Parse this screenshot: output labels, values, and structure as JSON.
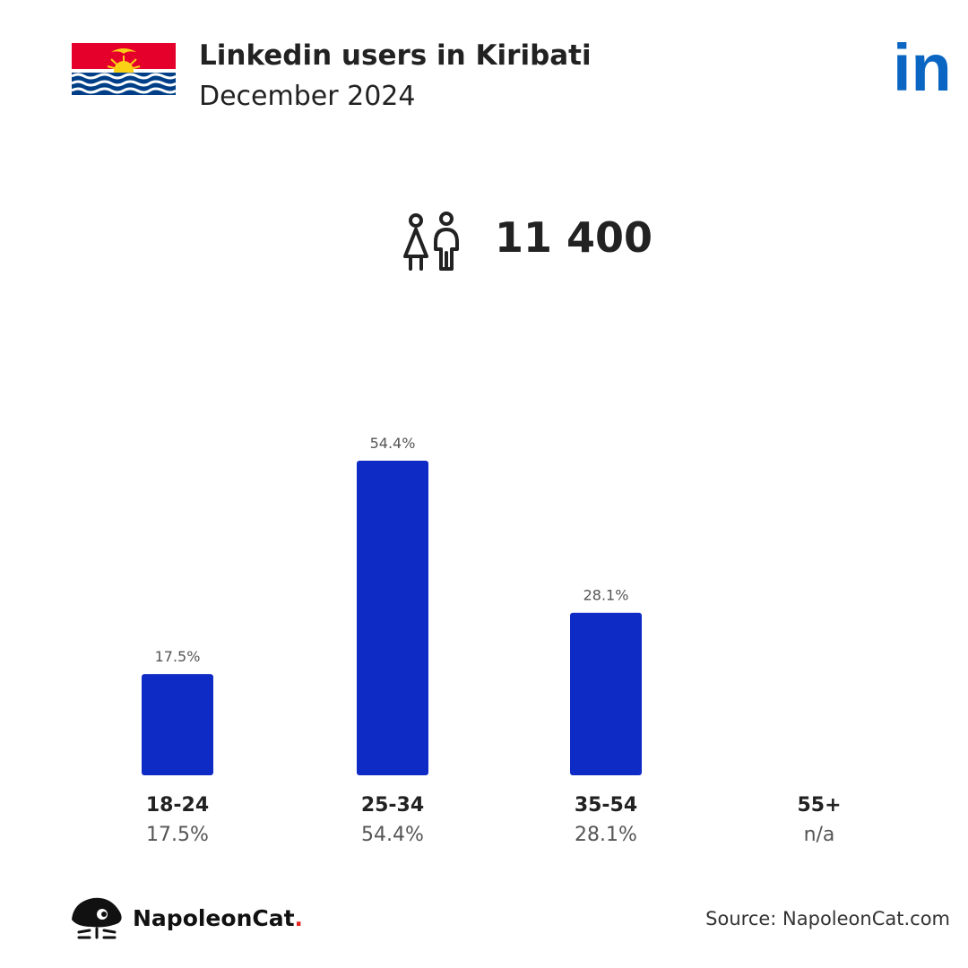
{
  "header": {
    "title": "Linkedin users in Kiribati",
    "subtitle": "December 2024",
    "flag_icon": "kiribati-flag-icon",
    "brand_icon": "linkedin-logo-icon",
    "brand_logo_text": "in"
  },
  "summary": {
    "icon": "users-icon",
    "total_users": "11 400"
  },
  "chart_data": {
    "type": "bar",
    "categories": [
      "18-24",
      "25-34",
      "35-54",
      "55+"
    ],
    "values": [
      17.5,
      54.4,
      28.1,
      null
    ],
    "value_labels": [
      "17.5%",
      "54.4%",
      "28.1%",
      "n/a"
    ],
    "title": "",
    "xlabel": "",
    "ylabel": "",
    "ylim": [
      0,
      54.4
    ],
    "grid": false,
    "colors": {
      "bar": "#0f2bc6",
      "category_text": "#222222",
      "value_text": "#555555"
    }
  },
  "footer": {
    "brand_name": "NapoleonCat",
    "brand_dot": ".",
    "brand_icon": "napoleoncat-logo-icon",
    "source": "Source: NapoleonCat.com"
  }
}
